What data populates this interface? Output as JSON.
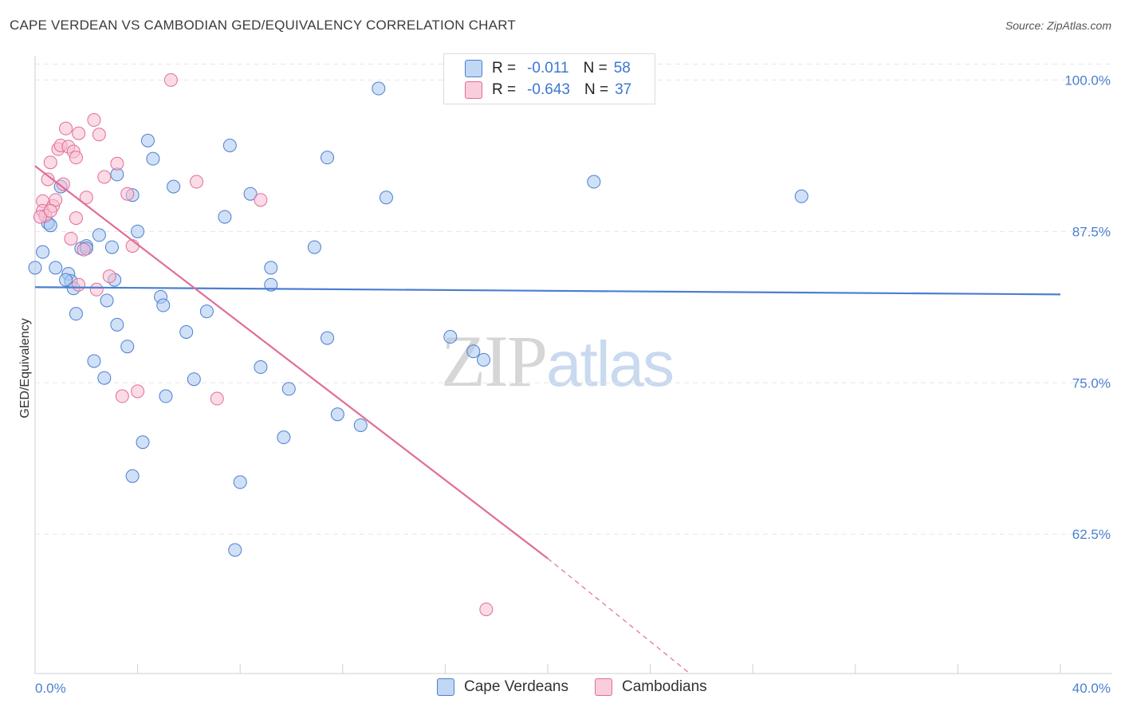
{
  "title": "CAPE VERDEAN VS CAMBODIAN GED/EQUIVALENCY CORRELATION CHART",
  "source": "Source: ZipAtlas.com",
  "watermark": {
    "zip": "ZIP",
    "atlas": "atlas"
  },
  "legend": {
    "rows": [
      {
        "r_label": "R =",
        "r_value": "-0.011",
        "n_label": "N =",
        "n_value": "58"
      },
      {
        "r_label": "R =",
        "r_value": "-0.643",
        "n_label": "N =",
        "n_value": "37"
      }
    ]
  },
  "bottom_legend": [
    "Cape Verdeans",
    "Cambodians"
  ],
  "chart_data": {
    "type": "scatter",
    "title": "CAPE VERDEAN VS CAMBODIAN GED/EQUIVALENCY CORRELATION CHART",
    "xlabel": "",
    "ylabel": "GED/Equivalency",
    "xlim": [
      0,
      40
    ],
    "ylim": [
      51,
      102
    ],
    "x_tick_labels": [
      "0.0%",
      "40.0%"
    ],
    "y_ticks": [
      62.5,
      75.0,
      87.5,
      100.0
    ],
    "y_tick_labels": [
      "62.5%",
      "75.0%",
      "87.5%",
      "100.0%"
    ],
    "grid": true,
    "legend_position": "top-center",
    "series": [
      {
        "name": "Cape Verdeans",
        "color": "#4a7fd1",
        "fill": "#a9c6ef",
        "trend": {
          "x": [
            0,
            40
          ],
          "y": [
            82.9,
            82.3
          ]
        },
        "points": [
          [
            0.0,
            84.5
          ],
          [
            0.3,
            85.8
          ],
          [
            0.5,
            88.2
          ],
          [
            0.6,
            88.0
          ],
          [
            0.8,
            84.5
          ],
          [
            1.0,
            91.2
          ],
          [
            1.3,
            84.0
          ],
          [
            1.4,
            83.4
          ],
          [
            1.5,
            82.8
          ],
          [
            1.6,
            80.7
          ],
          [
            1.8,
            86.1
          ],
          [
            2.0,
            86.3
          ],
          [
            2.0,
            86.1
          ],
          [
            2.3,
            76.8
          ],
          [
            2.5,
            87.2
          ],
          [
            2.7,
            75.4
          ],
          [
            2.8,
            81.8
          ],
          [
            3.0,
            86.2
          ],
          [
            3.1,
            83.5
          ],
          [
            3.2,
            92.2
          ],
          [
            3.2,
            79.8
          ],
          [
            3.6,
            78.0
          ],
          [
            3.8,
            90.5
          ],
          [
            4.0,
            87.5
          ],
          [
            4.2,
            70.1
          ],
          [
            4.4,
            95.0
          ],
          [
            4.6,
            93.5
          ],
          [
            3.8,
            67.3
          ],
          [
            4.9,
            82.1
          ],
          [
            5.0,
            81.4
          ],
          [
            5.1,
            73.9
          ],
          [
            5.4,
            91.2
          ],
          [
            5.9,
            79.2
          ],
          [
            6.2,
            75.3
          ],
          [
            6.7,
            80.9
          ],
          [
            7.4,
            88.7
          ],
          [
            7.6,
            94.6
          ],
          [
            7.8,
            61.2
          ],
          [
            8.0,
            66.8
          ],
          [
            8.4,
            90.6
          ],
          [
            8.8,
            76.3
          ],
          [
            9.2,
            84.5
          ],
          [
            9.2,
            83.1
          ],
          [
            9.7,
            70.5
          ],
          [
            9.9,
            74.5
          ],
          [
            10.9,
            86.2
          ],
          [
            11.4,
            93.6
          ],
          [
            11.4,
            78.7
          ],
          [
            11.8,
            72.4
          ],
          [
            12.7,
            71.5
          ],
          [
            13.4,
            99.3
          ],
          [
            13.7,
            90.3
          ],
          [
            16.2,
            78.8
          ],
          [
            17.1,
            77.6
          ],
          [
            17.5,
            76.9
          ],
          [
            21.8,
            91.6
          ],
          [
            29.9,
            90.4
          ],
          [
            1.2,
            83.5
          ]
        ]
      },
      {
        "name": "Cambodians",
        "color": "#e06d98",
        "fill": "#f7bed0",
        "trend": {
          "x": [
            0,
            20
          ],
          "y": [
            92.9,
            60.5
          ]
        },
        "trend_extension": {
          "x": [
            20,
            27
          ],
          "y": [
            60.5,
            48.5
          ]
        },
        "points": [
          [
            0.3,
            90.0
          ],
          [
            0.3,
            89.2
          ],
          [
            0.4,
            88.8
          ],
          [
            0.5,
            91.8
          ],
          [
            0.6,
            93.2
          ],
          [
            0.7,
            89.6
          ],
          [
            0.8,
            90.1
          ],
          [
            0.9,
            94.3
          ],
          [
            1.0,
            94.6
          ],
          [
            1.1,
            91.4
          ],
          [
            1.2,
            96.0
          ],
          [
            1.3,
            94.5
          ],
          [
            1.4,
            86.9
          ],
          [
            1.5,
            94.1
          ],
          [
            1.6,
            88.6
          ],
          [
            1.6,
            93.6
          ],
          [
            1.7,
            95.6
          ],
          [
            1.9,
            86.0
          ],
          [
            2.0,
            90.3
          ],
          [
            2.3,
            96.7
          ],
          [
            2.4,
            82.7
          ],
          [
            2.5,
            95.5
          ],
          [
            2.7,
            92.0
          ],
          [
            2.9,
            83.8
          ],
          [
            3.2,
            93.1
          ],
          [
            3.4,
            73.9
          ],
          [
            3.6,
            90.6
          ],
          [
            3.8,
            86.3
          ],
          [
            4.0,
            74.3
          ],
          [
            5.3,
            100.0
          ],
          [
            6.3,
            91.6
          ],
          [
            7.1,
            73.7
          ],
          [
            8.8,
            90.1
          ],
          [
            17.6,
            56.3
          ],
          [
            1.7,
            83.1
          ],
          [
            0.2,
            88.7
          ],
          [
            0.6,
            89.2
          ]
        ]
      }
    ]
  }
}
